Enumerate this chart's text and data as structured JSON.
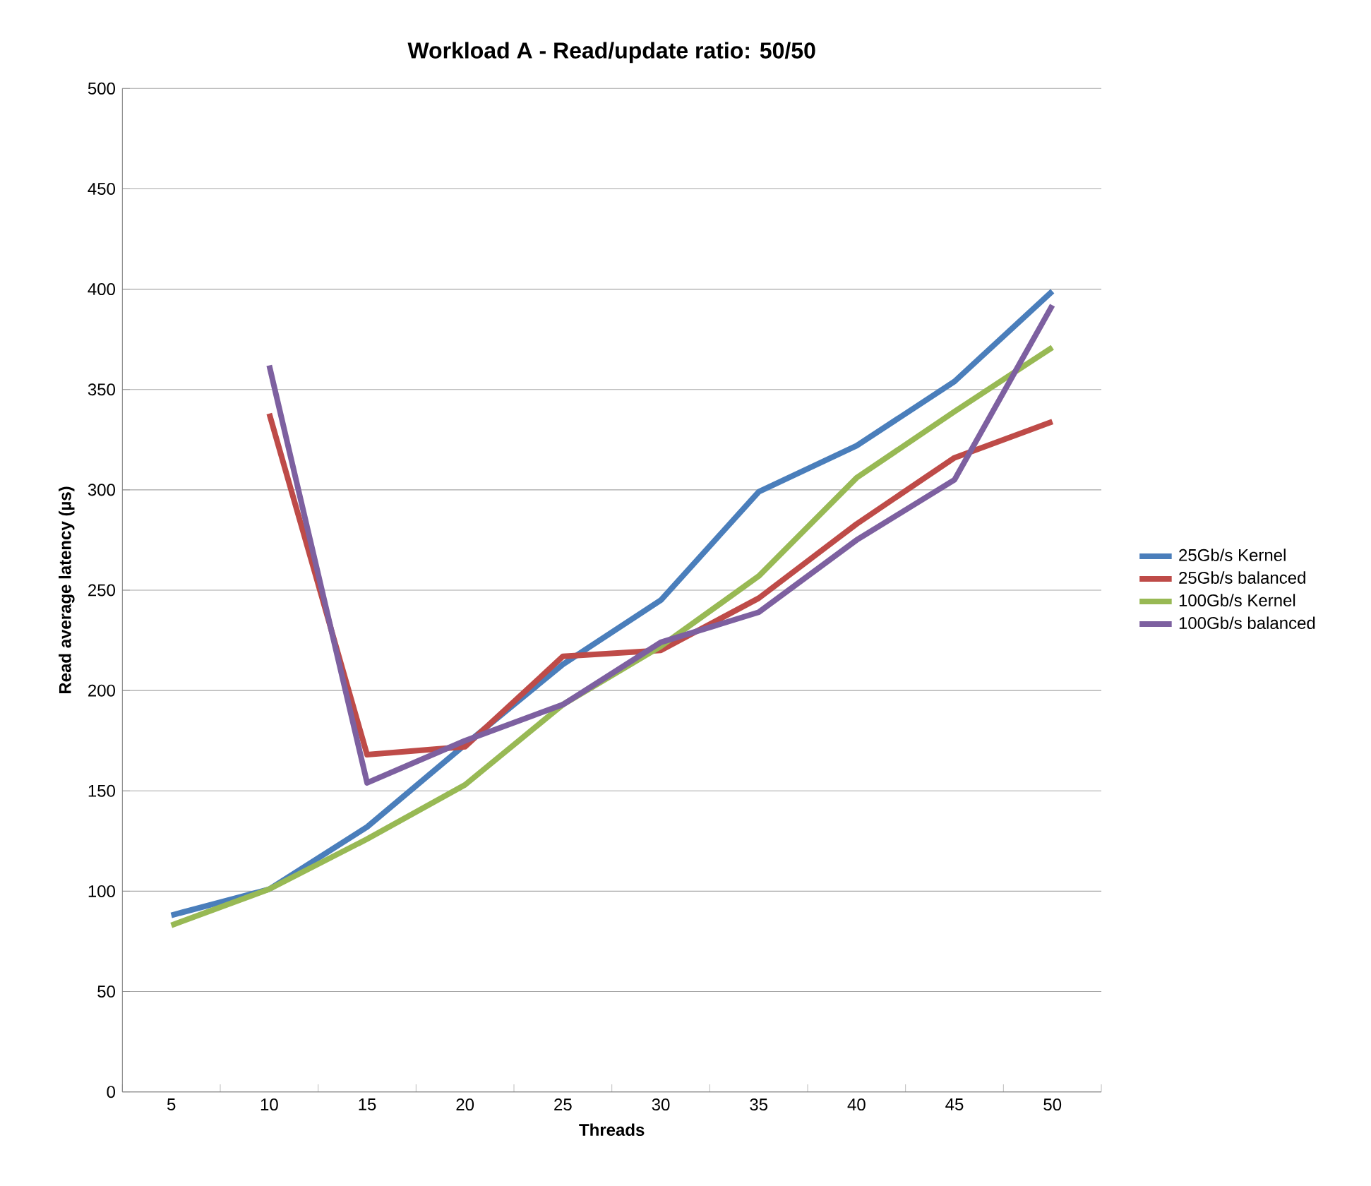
{
  "chart_data": {
    "type": "line",
    "title": "Workload A - Read/update ratio: 50/50",
    "xlabel": "Threads",
    "ylabel": "Read average latency (µs)",
    "categories": [
      "5",
      "10",
      "15",
      "20",
      "25",
      "30",
      "35",
      "40",
      "45",
      "50"
    ],
    "ylim": [
      0,
      500
    ],
    "yticks": [
      0,
      50,
      100,
      150,
      200,
      250,
      300,
      350,
      400,
      450,
      500
    ],
    "grid": "y",
    "legend": "right",
    "marker": "none",
    "line_style": "solid",
    "series": [
      {
        "name": "25Gb/s Kernel",
        "color": "#4a7ebb",
        "values": [
          88,
          101,
          132,
          173,
          213,
          245,
          299,
          322,
          354,
          399
        ]
      },
      {
        "name": "25Gb/s balanced",
        "color": "#be4b48",
        "values": [
          null,
          338,
          168,
          172,
          217,
          220,
          246,
          283,
          316,
          334
        ]
      },
      {
        "name": "100Gb/s Kernel",
        "color": "#98b954",
        "values": [
          83,
          101,
          126,
          153,
          193,
          222,
          257,
          306,
          339,
          371
        ]
      },
      {
        "name": "100Gb/s balanced",
        "color": "#7d60a0",
        "values": [
          null,
          362,
          154,
          175,
          193,
          224,
          239,
          275,
          305,
          392
        ]
      }
    ]
  }
}
